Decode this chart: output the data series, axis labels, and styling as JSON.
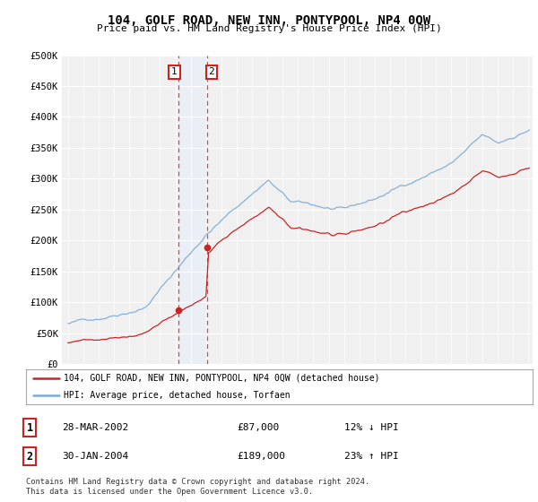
{
  "title": "104, GOLF ROAD, NEW INN, PONTYPOOL, NP4 0QW",
  "subtitle": "Price paid vs. HM Land Registry's House Price Index (HPI)",
  "ylim": [
    0,
    500000
  ],
  "yticks": [
    0,
    50000,
    100000,
    150000,
    200000,
    250000,
    300000,
    350000,
    400000,
    450000,
    500000
  ],
  "ytick_labels": [
    "£0",
    "£50K",
    "£100K",
    "£150K",
    "£200K",
    "£250K",
    "£300K",
    "£350K",
    "£400K",
    "£450K",
    "£500K"
  ],
  "hpi_color": "#7aaad4",
  "price_color": "#cc2222",
  "vline_color": "#dd4444",
  "vline_fill": "#ddeeff",
  "t1": 2002.22,
  "t2": 2004.08,
  "p1": 87000,
  "p2": 189000,
  "legend_label_price": "104, GOLF ROAD, NEW INN, PONTYPOOL, NP4 0QW (detached house)",
  "legend_label_hpi": "HPI: Average price, detached house, Torfaen",
  "table_row1": [
    "1",
    "28-MAR-2002",
    "£87,000",
    "12% ↓ HPI"
  ],
  "table_row2": [
    "2",
    "30-JAN-2004",
    "£189,000",
    "23% ↑ HPI"
  ],
  "footer": "Contains HM Land Registry data © Crown copyright and database right 2024.\nThis data is licensed under the Open Government Licence v3.0.",
  "background_color": "#ffffff",
  "plot_bg_color": "#f0f0f0"
}
